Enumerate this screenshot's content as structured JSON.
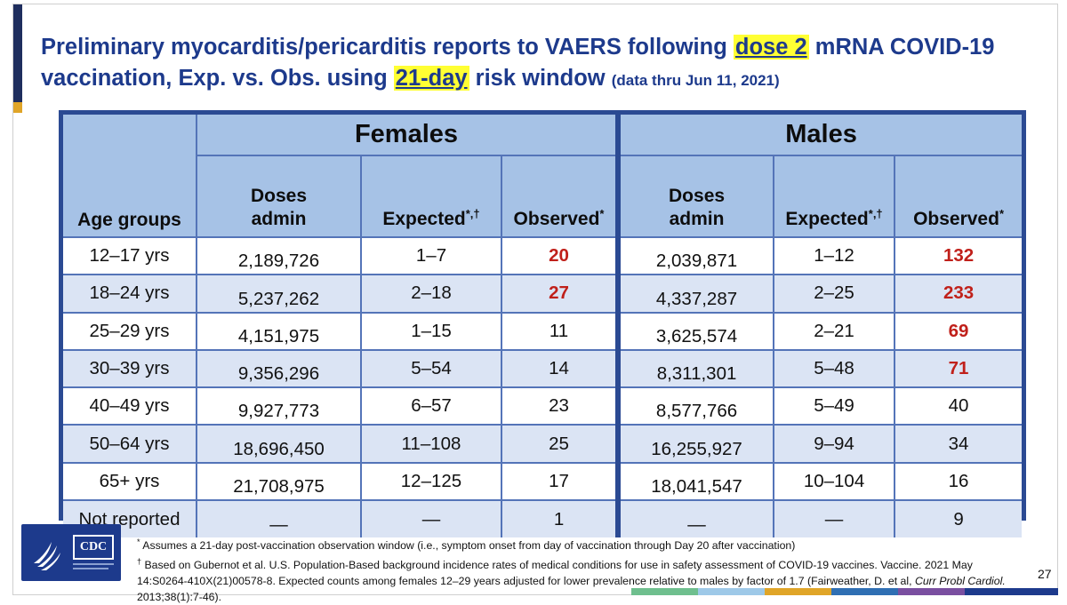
{
  "title": {
    "part1": "Preliminary myocarditis/pericarditis reports to VAERS following ",
    "hl1": "dose 2",
    "part2": " mRNA COVID-19 vaccination, Exp. vs. Obs. using ",
    "hl2": "21-day",
    "part3": " risk window ",
    "note": "(data thru Jun 11, 2021)"
  },
  "table": {
    "age_header": "Age groups",
    "group_females": "Females",
    "group_males": "Males",
    "col_doses_line1": "Doses",
    "col_doses_line2": "admin",
    "col_expected": "Expected",
    "col_expected_sup": "*,†",
    "col_observed": "Observed",
    "col_observed_sup": "*",
    "rows": [
      {
        "age": "12–17 yrs",
        "f_doses": "2,189,726",
        "f_exp": "1–7",
        "f_obs": "20",
        "m_doses": "2,039,871",
        "m_exp": "1–12",
        "m_obs": "132"
      },
      {
        "age": "18–24 yrs",
        "f_doses": "5,237,262",
        "f_exp": "2–18",
        "f_obs": "27",
        "m_doses": "4,337,287",
        "m_exp": "2–25",
        "m_obs": "233"
      },
      {
        "age": "25–29 yrs",
        "f_doses": "4,151,975",
        "f_exp": "1–15",
        "f_obs": "11",
        "m_doses": "3,625,574",
        "m_exp": "2–21",
        "m_obs": "69"
      },
      {
        "age": "30–39 yrs",
        "f_doses": "9,356,296",
        "f_exp": "5–54",
        "f_obs": "14",
        "m_doses": "8,311,301",
        "m_exp": "5–48",
        "m_obs": "71"
      },
      {
        "age": "40–49 yrs",
        "f_doses": "9,927,773",
        "f_exp": "6–57",
        "f_obs": "23",
        "m_doses": "8,577,766",
        "m_exp": "5–49",
        "m_obs": "40"
      },
      {
        "age": "50–64 yrs",
        "f_doses": "18,696,450",
        "f_exp": "11–108",
        "f_obs": "25",
        "m_doses": "16,255,927",
        "m_exp": "9–94",
        "m_obs": "34"
      },
      {
        "age": "65+ yrs",
        "f_doses": "21,708,975",
        "f_exp": "12–125",
        "f_obs": "17",
        "m_doses": "18,041,547",
        "m_exp": "10–104",
        "m_obs": "16"
      },
      {
        "age": "Not reported",
        "f_doses": "—",
        "f_exp": "—",
        "f_obs": "1",
        "m_doses": "—",
        "m_exp": "—",
        "m_obs": "9"
      }
    ]
  },
  "footnotes": {
    "fn1_mark": "*",
    "fn1": "Assumes a 21-day post-vaccination observation window (i.e., symptom onset from day of vaccination through Day 20 after vaccination)",
    "fn2_mark": "†",
    "fn2_a": "Based on Gubernot et al. U.S. Population-Based background incidence rates of medical conditions for use in safety assessment of COVID-19 vaccines. Vaccine. 2021 May 14:S0264-410X(21)00578-8. Expected counts among females 12–29 years adjusted for lower prevalence relative to males by factor of 1.7 (Fairweather, D. et al, ",
    "fn2_ital": "Curr Probl Cardiol.",
    "fn2_b": " 2013;38(1):7-46)."
  },
  "page_number": "27",
  "logo_text": "CDC",
  "colors": {
    "navy": "#1f2e5e",
    "title_blue": "#1d3a8c",
    "table_border": "#2b4a93",
    "header_fill": "#a6c2e6",
    "alt_row": "#dbe4f4",
    "highlight": "#ffff33",
    "red_value": "#c0201a",
    "accent_gold": "#e0a528"
  }
}
